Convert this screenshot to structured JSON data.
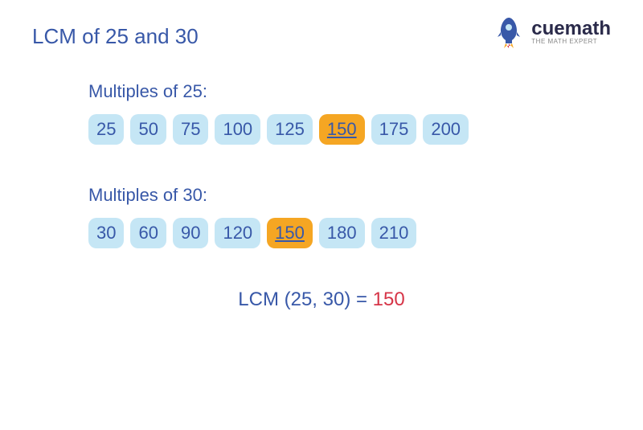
{
  "title": "LCM of 25 and 30",
  "logo": {
    "brand_cue": "cue",
    "brand_math": "math",
    "tagline": "THE MATH EXPERT"
  },
  "sections": [
    {
      "title": "Multiples of 25:",
      "chips": [
        {
          "value": "25",
          "highlight": false
        },
        {
          "value": "50",
          "highlight": false
        },
        {
          "value": "75",
          "highlight": false
        },
        {
          "value": "100",
          "highlight": false
        },
        {
          "value": "125",
          "highlight": false
        },
        {
          "value": "150",
          "highlight": true
        },
        {
          "value": "175",
          "highlight": false
        },
        {
          "value": "200",
          "highlight": false
        }
      ]
    },
    {
      "title": "Multiples of 30:",
      "chips": [
        {
          "value": "30",
          "highlight": false
        },
        {
          "value": "60",
          "highlight": false
        },
        {
          "value": "90",
          "highlight": false
        },
        {
          "value": "120",
          "highlight": false
        },
        {
          "value": "150",
          "highlight": true
        },
        {
          "value": "180",
          "highlight": false
        },
        {
          "value": "210",
          "highlight": false
        }
      ]
    }
  ],
  "result": {
    "label": "LCM (25, 30) = ",
    "answer": "150"
  },
  "colors": {
    "primary_text": "#3858a8",
    "chip_bg": "#c5e6f5",
    "highlight_bg": "#f5a623",
    "answer_color": "#d63447",
    "background": "#ffffff"
  },
  "typography": {
    "title_fontsize": 26,
    "section_title_fontsize": 22,
    "chip_fontsize": 22,
    "result_fontsize": 24
  }
}
